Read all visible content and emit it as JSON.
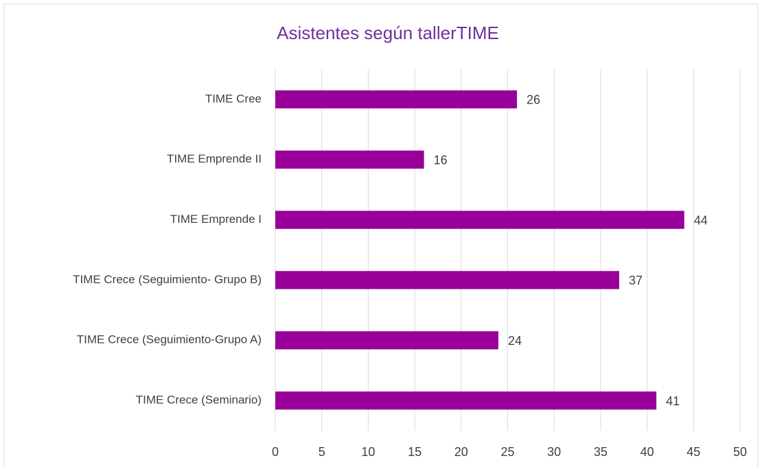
{
  "chart_data": {
    "type": "bar",
    "orientation": "horizontal",
    "title": "Asistentes según tallerTIME",
    "categories": [
      "TIME Cree",
      "TIME Emprende II",
      "TIME Emprende I",
      "TIME Crece (Seguimiento- Grupo B)",
      "TIME Crece (Seguimiento-Grupo A)",
      "TIME Crece (Seminario)"
    ],
    "values": [
      26,
      16,
      44,
      37,
      24,
      41
    ],
    "color": "#990099",
    "xlim": [
      0,
      50
    ],
    "xticks": [
      0,
      5,
      10,
      15,
      20,
      25,
      30,
      35,
      40,
      45,
      50
    ],
    "grid": true,
    "data_labels": true
  }
}
